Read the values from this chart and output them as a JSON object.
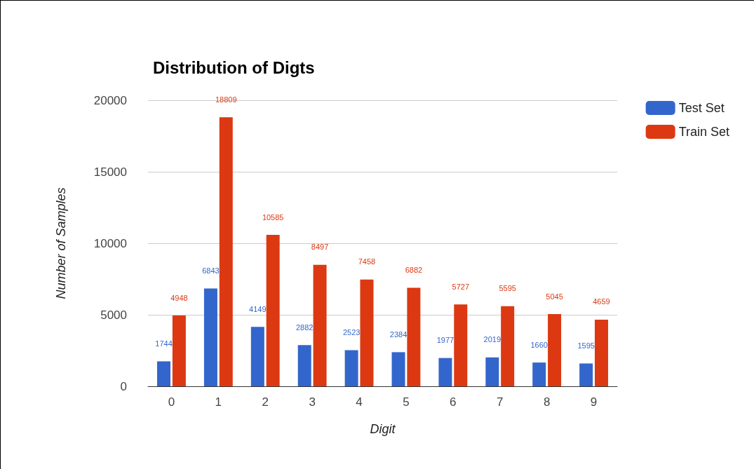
{
  "chart_data": {
    "type": "bar",
    "title": "Distribution of Digts",
    "xlabel": "Digit",
    "ylabel": "Number of Samples",
    "categories": [
      "0",
      "1",
      "2",
      "3",
      "4",
      "5",
      "6",
      "7",
      "8",
      "9"
    ],
    "series": [
      {
        "name": "Test Set",
        "color": "#3366cc",
        "values": [
          1744,
          6843,
          4149,
          2882,
          2523,
          2384,
          1977,
          2019,
          1660,
          1595
        ]
      },
      {
        "name": "Train Set",
        "color": "#dc3912",
        "values": [
          4948,
          18809,
          10585,
          8497,
          7458,
          6882,
          5727,
          5595,
          5045,
          4659
        ]
      }
    ],
    "ylim": [
      0,
      20000
    ],
    "yticks": [
      0,
      5000,
      10000,
      15000,
      20000
    ],
    "grid": "y",
    "legend": "top right",
    "data_labels": true
  }
}
